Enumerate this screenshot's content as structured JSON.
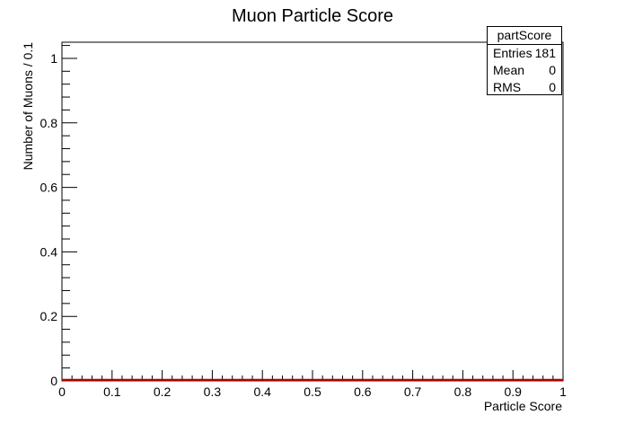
{
  "chart_data": {
    "type": "bar",
    "title": "Muon Particle Score",
    "xlabel": "Particle Score",
    "ylabel": "Number of Muons / 0.1",
    "xlim": [
      0,
      1
    ],
    "ylim": [
      0,
      1.05
    ],
    "x_tick_labels": [
      "0",
      "0.1",
      "0.2",
      "0.3",
      "0.4",
      "0.5",
      "0.6",
      "0.7",
      "0.8",
      "0.9",
      "1"
    ],
    "y_tick_labels": [
      "0",
      "0.2",
      "0.4",
      "0.6",
      "0.8",
      "1"
    ],
    "bin_edges": [
      0,
      0.1,
      0.2,
      0.3,
      0.4,
      0.5,
      0.6,
      0.7,
      0.8,
      0.9,
      1.0
    ],
    "values": [
      0,
      0,
      0,
      0,
      0,
      0,
      0,
      0,
      0,
      0
    ],
    "line_color": "#b00000",
    "grid": false,
    "legend": "none"
  },
  "stats": {
    "title": "partScore",
    "entries_label": "Entries",
    "entries_value": "181",
    "mean_label": "Mean",
    "mean_value": "0",
    "rms_label": "RMS",
    "rms_value": "0"
  }
}
